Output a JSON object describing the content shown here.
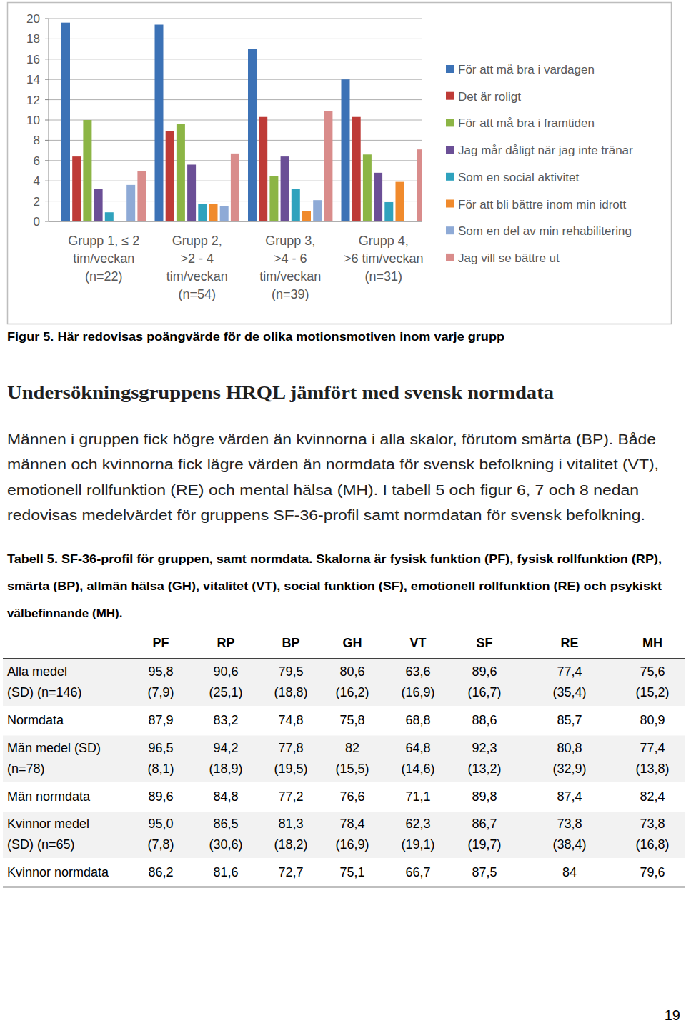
{
  "chart_data": {
    "type": "bar",
    "categories": [
      "Grupp 1, ≤ 2\ntim/veckan\n(n=22)",
      "Grupp 2,\n>2 - 4\ntim/veckan\n(n=54)",
      "Grupp 3,\n>4 - 6\ntim/veckan\n(n=39)",
      "Grupp 4,\n>6 tim/veckan\n(n=31)"
    ],
    "series": [
      {
        "name": "För att må bra i vardagen",
        "color": "#3c72b6",
        "values": [
          19.6,
          19.4,
          17.0,
          14.0
        ]
      },
      {
        "name": "Det är roligt",
        "color": "#be3b37",
        "values": [
          6.4,
          8.9,
          10.3,
          10.3
        ]
      },
      {
        "name": "För att må bra i framtiden",
        "color": "#8cb545",
        "values": [
          10.0,
          9.6,
          4.5,
          6.6
        ]
      },
      {
        "name": "Jag mår dåligt när jag inte tränar",
        "color": "#6b4f96",
        "values": [
          3.2,
          5.6,
          6.4,
          4.8
        ]
      },
      {
        "name": "Som en social aktivitet",
        "color": "#2fa2bd",
        "values": [
          0.9,
          1.7,
          3.2,
          1.9
        ]
      },
      {
        "name": "För att bli bättre inom min idrott",
        "color": "#f08a2c",
        "values": [
          0,
          1.7,
          1.0,
          3.9
        ]
      },
      {
        "name": "Som en del av min rehabilitering",
        "color": "#8eaad6",
        "values": [
          3.6,
          1.5,
          2.1,
          0
        ]
      },
      {
        "name": "Jag vill se bättre ut",
        "color": "#d98c8b",
        "values": [
          5.0,
          6.7,
          10.9,
          7.1
        ]
      }
    ],
    "ylim": [
      0,
      20
    ],
    "yticks": [
      0,
      2,
      4,
      6,
      8,
      10,
      12,
      14,
      16,
      18,
      20
    ],
    "grid": true,
    "legend": "right"
  },
  "caption": "Figur 5. Här redovisas poängvärde för de olika motionsmotiven inom varje grupp",
  "heading": "Undersökningsgruppens HRQL jämfört med svensk normdata",
  "paragraph": [
    "Männen i gruppen fick högre värden än kvinnorna i alla skalor, förutom smärta (BP). Både",
    "männen och kvinnorna fick lägre värden än normdata för svensk befolkning i vitalitet (VT),",
    "emotionell rollfunktion (RE) och mental hälsa (MH). I tabell 5 och figur 6, 7 och 8 nedan",
    "redovisas medelvärdet för gruppens SF-36-profil samt normdatan för svensk befolkning."
  ],
  "table_caption": [
    "Tabell 5. SF-36-profil för gruppen, samt normdata. Skalorna är fysisk funktion (PF), fysisk rollfunktion (RP),",
    "smärta (BP), allmän hälsa (GH), vitalitet (VT), social funktion (SF), emotionell rollfunktion (RE) och psykiskt",
    "välbefinnande (MH)."
  ],
  "table": {
    "header": [
      "PF",
      "RP",
      "BP",
      "GH",
      "VT",
      "SF",
      "RE",
      "MH"
    ],
    "rows": [
      {
        "label": [
          "Alla medel",
          "(SD) (n=146)"
        ],
        "values": [
          "95,8",
          "90,6",
          "79,5",
          "80,6",
          "63,6",
          "89,6",
          "77,4",
          "75,6"
        ],
        "sd": [
          "(7,9)",
          "(25,1)",
          "(18,8)",
          "(16,2)",
          "(16,9)",
          "(16,7)",
          "(35,4)",
          "(15,2)"
        ]
      },
      {
        "label": [
          "Normdata"
        ],
        "values": [
          "87,9",
          "83,2",
          "74,8",
          "75,8",
          "68,8",
          "88,6",
          "85,7",
          "80,9"
        ]
      },
      {
        "label": [
          "Män medel (SD)",
          "(n=78)"
        ],
        "values": [
          "96,5",
          "94,2",
          "77,8",
          "82",
          "64,8",
          "92,3",
          "80,8",
          "77,4"
        ],
        "sd": [
          "(8,1)",
          "(18,9)",
          "(19,5)",
          "(15,5)",
          "(14,6)",
          "(13,2)",
          "(32,9)",
          "(13,8)"
        ]
      },
      {
        "label": [
          "Män normdata"
        ],
        "values": [
          "89,6",
          "84,8",
          "77,2",
          "76,6",
          "71,1",
          "89,8",
          "87,4",
          "82,4"
        ]
      },
      {
        "label": [
          "Kvinnor medel",
          "(SD) (n=65)"
        ],
        "values": [
          "95,0",
          "86,5",
          "81,3",
          "78,4",
          "62,3",
          "86,7",
          "73,8",
          "73,8"
        ],
        "sd": [
          "(7,8)",
          "(30,6)",
          "(18,2)",
          "(16,9)",
          "(19,1)",
          "(19,7)",
          "(38,4)",
          "(16,8)"
        ]
      },
      {
        "label": [
          "Kvinnor normdata"
        ],
        "values": [
          "86,2",
          "81,6",
          "72,7",
          "75,1",
          "66,7",
          "87,5",
          "84",
          "79,6"
        ]
      }
    ]
  },
  "page_number": "19"
}
